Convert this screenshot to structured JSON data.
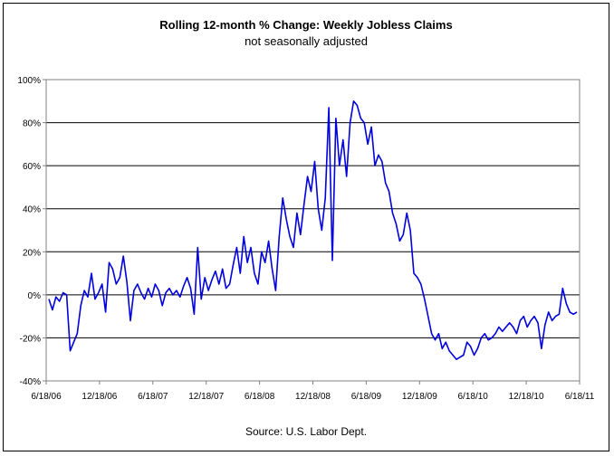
{
  "chart_data": {
    "type": "line",
    "title": "Rolling 12-month %  Change: Weekly Jobless Claims",
    "subtitle": "not seasonally adjusted",
    "source": "Source: U.S. Labor Dept.",
    "xlabel": "",
    "ylabel": "",
    "ylim": [
      -40,
      100
    ],
    "y_ticks": [
      -40,
      -20,
      0,
      20,
      40,
      60,
      80,
      100
    ],
    "y_tick_labels": [
      "-40%",
      "-20%",
      "0%",
      "20%",
      "40%",
      "60%",
      "80%",
      "100%"
    ],
    "x_tick_labels": [
      "6/18/06",
      "12/18/06",
      "6/18/07",
      "12/18/07",
      "6/18/08",
      "12/18/08",
      "6/18/09",
      "12/18/09",
      "6/18/10",
      "12/18/10",
      "6/18/11"
    ],
    "grid": "horizontal",
    "line_color": "#0000dd",
    "series": [
      {
        "values": [
          -2,
          -7,
          -1,
          -3,
          1,
          0,
          -26,
          -22,
          -18,
          -5,
          2,
          -1,
          10,
          -2,
          1,
          5,
          -8,
          15,
          12,
          5,
          8,
          18,
          6,
          -12,
          2,
          5,
          1,
          -2,
          3,
          -1,
          5,
          2,
          -5,
          1,
          3,
          0,
          2,
          -1,
          4,
          8,
          3,
          -9,
          22,
          -2,
          8,
          2,
          7,
          11,
          5,
          12,
          3,
          5,
          14,
          22,
          10,
          27,
          15,
          22,
          10,
          5,
          20,
          15,
          25,
          12,
          2,
          27,
          45,
          35,
          27,
          22,
          38,
          28,
          42,
          55,
          48,
          62,
          40,
          30,
          45,
          87,
          16,
          82,
          60,
          72,
          55,
          80,
          90,
          88,
          82,
          80,
          70,
          78,
          60,
          65,
          62,
          52,
          48,
          38,
          33,
          25,
          28,
          38,
          30,
          10,
          8,
          5,
          -2,
          -10,
          -18,
          -21,
          -18,
          -25,
          -22,
          -26,
          -28,
          -30,
          -29,
          -28,
          -22,
          -24,
          -28,
          -25,
          -20,
          -18,
          -21,
          -20,
          -18,
          -15,
          -17,
          -15,
          -13,
          -15,
          -18,
          -12,
          -10,
          -15,
          -12,
          -10,
          -13,
          -25,
          -14,
          -8,
          -12,
          -10,
          -9,
          3,
          -4,
          -8,
          -9,
          -8
        ]
      }
    ]
  }
}
